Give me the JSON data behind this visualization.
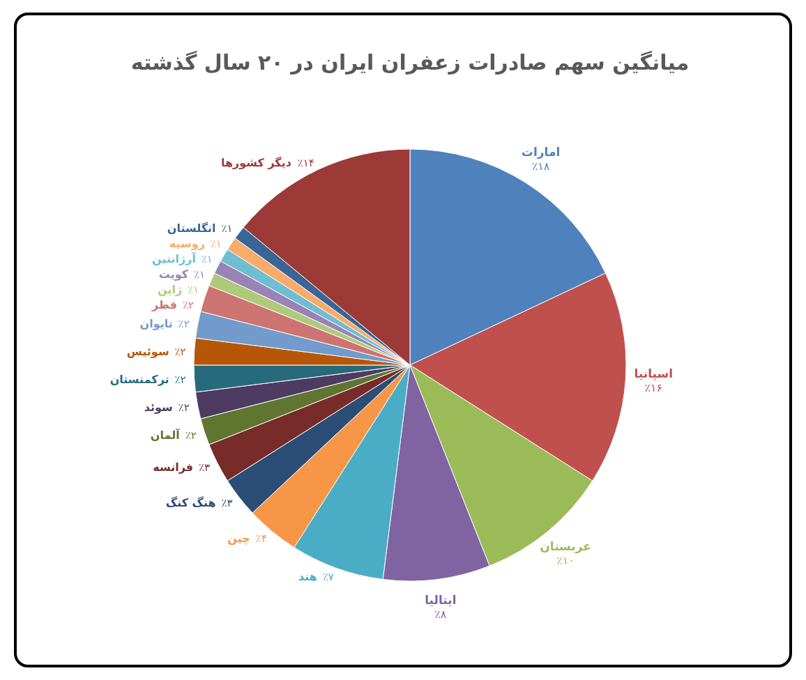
{
  "chart_data": {
    "type": "pie",
    "title": "میانگین سهم صادرات زعفران ایران در ۲۰ سال گذشته",
    "categories": [
      "امارات",
      "اسپانیا",
      "عربستان",
      "ایتالیا",
      "هند",
      "چین",
      "هنگ کنگ",
      "فرانسه",
      "آلمان",
      "سوئد",
      "ترکمنستان",
      "سوئیس",
      "تایوان",
      "قطر",
      "ژاپن",
      "کویت",
      "آرژانتین",
      "روسیه",
      "انگلستان",
      "دیگر کشورها"
    ],
    "values": [
      18,
      16,
      10,
      8,
      7,
      4,
      3,
      3,
      2,
      2,
      2,
      2,
      2,
      2,
      1,
      1,
      1,
      1,
      1,
      14
    ],
    "colors": [
      "#4f81bd",
      "#c0504d",
      "#9bbb59",
      "#8064a2",
      "#4bacc6",
      "#f79646",
      "#2c4d75",
      "#772c2a",
      "#5f7530",
      "#4d3b62",
      "#276a7c",
      "#b65708",
      "#729aca",
      "#cd7371",
      "#afc97a",
      "#9983b5",
      "#6fbdd1",
      "#f9ab6b",
      "#3a6597",
      "#9c3a38"
    ],
    "value_labels": [
      "٪۱۸",
      "٪۱۶",
      "٪۱۰",
      "٪۸",
      "٪۷",
      "٪۴",
      "٪۳",
      "٪۳",
      "٪۲",
      "٪۲",
      "٪۲",
      "٪۲",
      "٪۲",
      "٪۲",
      "٪۱",
      "٪۱",
      "٪۱",
      "٪۱",
      "٪۱",
      "٪۱۴"
    ]
  }
}
